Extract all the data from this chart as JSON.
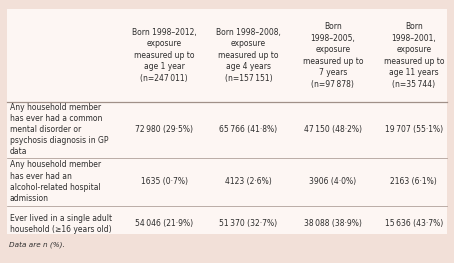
{
  "background_color": "#f2e0d8",
  "table_bg": "#fdf6f3",
  "col_headers": [
    "Born 1998–2012,\nexposure\nmeasured up to\nage 1 year\n(n=247 011)",
    "Born 1998–2008,\nexposure\nmeasured up to\nage 4 years\n(n=157 151)",
    "Born\n1998–2005,\nexposure\nmeasured up to\n7 years\n(n=97 878)",
    "Born\n1998–2001,\nexposure\nmeasured up to\nage 11 years\n(n=35 744)"
  ],
  "row_labels": [
    "Any household member\nhas ever had a common\nmental disorder or\npsychosis diagnosis in GP\ndata",
    "Any household member\nhas ever had an\nalcohol-related hospital\nadmission",
    "Ever lived in a single adult\nhousehold (≥16 years old)"
  ],
  "data": [
    [
      "72 980 (29·5%)",
      "65 766 (41·8%)",
      "47 150 (48·2%)",
      "19 707 (55·1%)"
    ],
    [
      "1635 (0·7%)",
      "4123 (2·6%)",
      "3906 (4·0%)",
      "2163 (6·1%)"
    ],
    [
      "54 046 (21·9%)",
      "51 370 (32·7%)",
      "38 088 (38·9%)",
      "15 636 (43·7%)"
    ]
  ],
  "footnote": "Data are n (%).",
  "font_size": 5.5,
  "header_font_size": 5.5,
  "text_color": "#2d2d2d",
  "line_color": "#a09088"
}
